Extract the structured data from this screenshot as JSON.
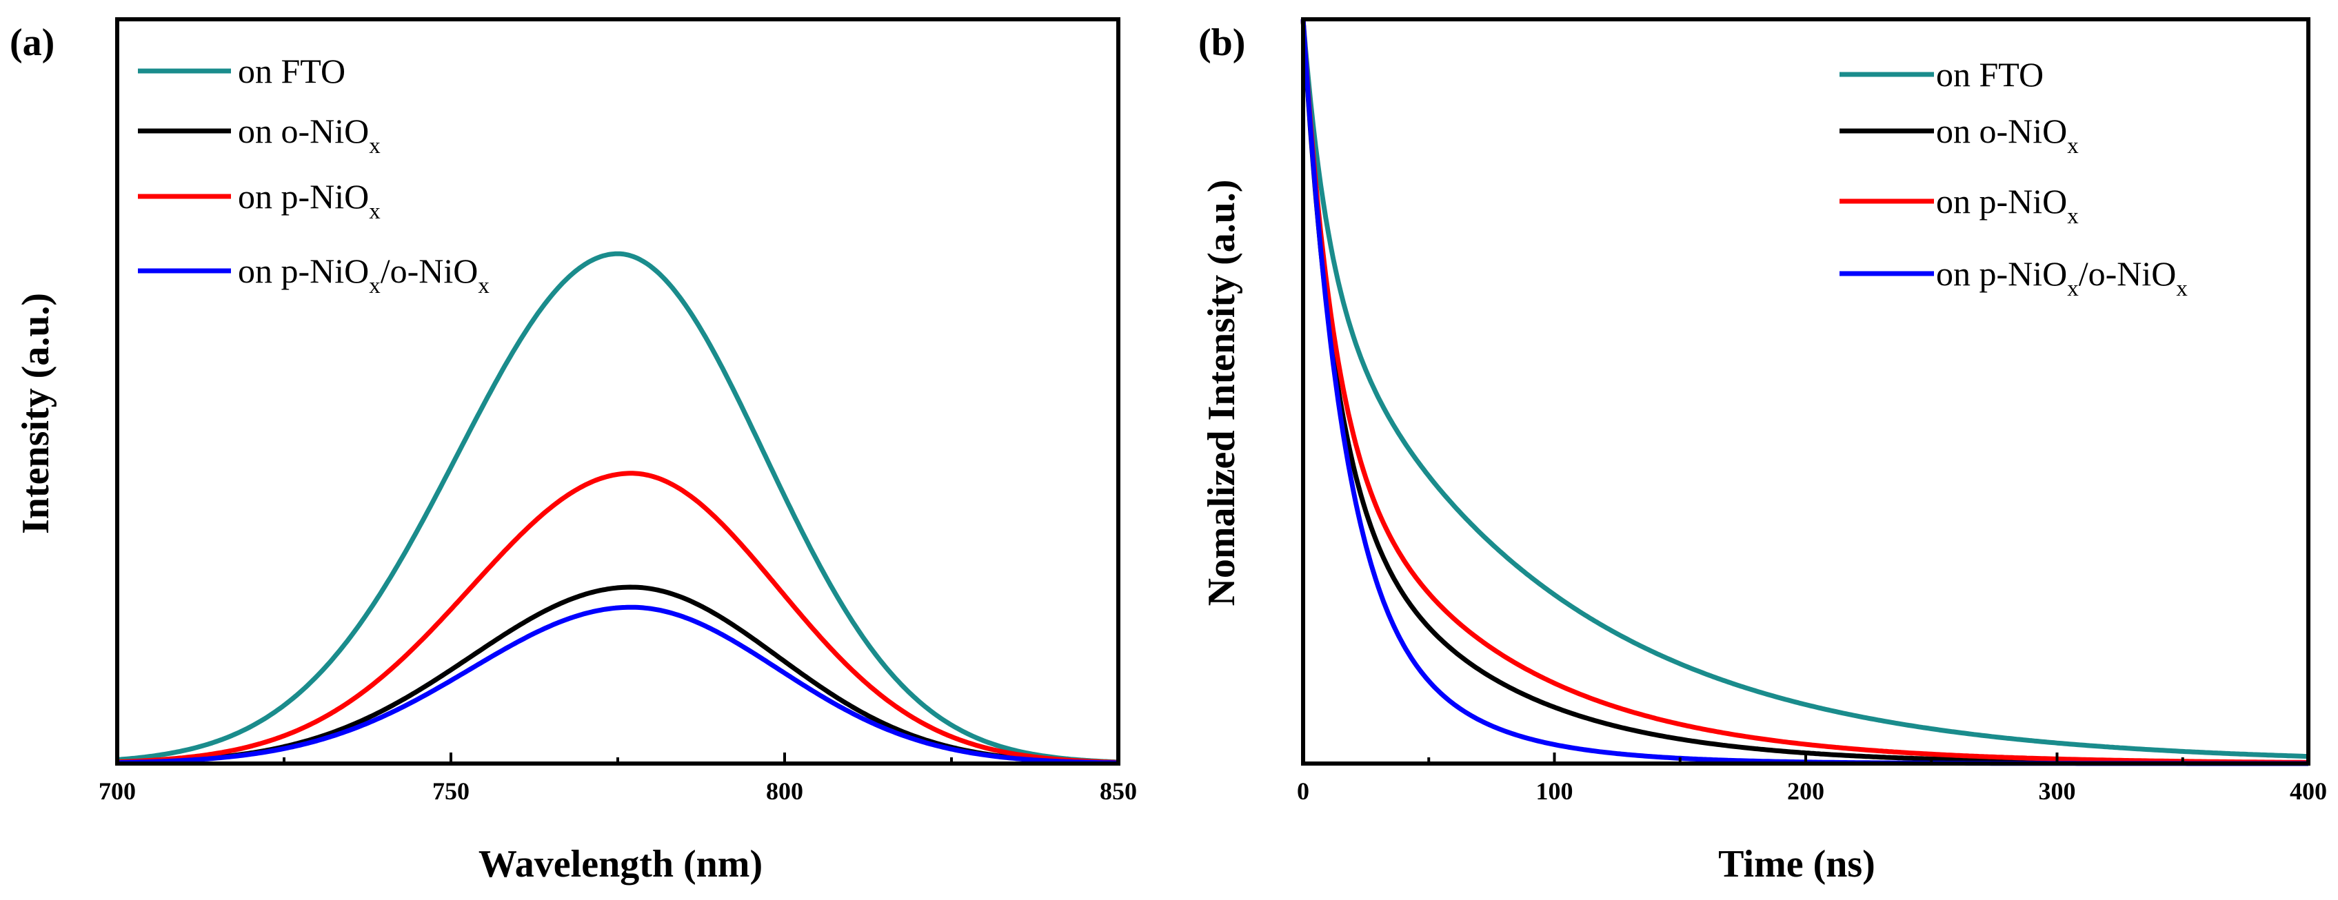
{
  "chart_data": [
    {
      "type": "line",
      "panel_label": "(a)",
      "xlabel": "Wavelength (nm)",
      "ylabel": "Intensity (a.u.)",
      "xlim": [
        700,
        850
      ],
      "ylim": [
        0,
        1.0
      ],
      "xticks": [
        "700",
        "750",
        "800",
        "850"
      ],
      "show_y_ticklabels": false,
      "legend": "top-left",
      "series": [
        {
          "name": "on FTO",
          "color": "#1a8c8c",
          "peak_x": 775,
          "peak_y": 0.685,
          "sigma_left": 24,
          "sigma_right": 22
        },
        {
          "name": "on o-NiOx",
          "color": "#000000",
          "peak_x": 777,
          "peak_y": 0.237,
          "sigma_left": 24,
          "sigma_right": 22
        },
        {
          "name": "on p-NiOx",
          "color": "#ff0000",
          "peak_x": 777,
          "peak_y": 0.39,
          "sigma_left": 24,
          "sigma_right": 22
        },
        {
          "name": "on p-NiOx/o-NiOx",
          "color": "#0000ff",
          "peak_x": 777,
          "peak_y": 0.21,
          "sigma_left": 24,
          "sigma_right": 22
        }
      ]
    },
    {
      "type": "line",
      "panel_label": "(b)",
      "xlabel": "Time (ns)",
      "ylabel": "Nomalized Intensity (a.u.)",
      "xlim": [
        0,
        400
      ],
      "ylim": [
        0,
        1.0
      ],
      "xticks": [
        "0",
        "100",
        "200",
        "300",
        "400"
      ],
      "show_y_ticklabels": false,
      "legend": "top-right",
      "series": [
        {
          "name": "on FTO",
          "color": "#1a8c8c",
          "a1": 0.35,
          "tau1": 10,
          "a2": 0.65,
          "tau2": 95
        },
        {
          "name": "on o-NiOx",
          "color": "#000000",
          "a1": 0.6,
          "tau1": 12,
          "a2": 0.4,
          "tau2": 60
        },
        {
          "name": "on p-NiOx",
          "color": "#ff0000",
          "a1": 0.55,
          "tau1": 12,
          "a2": 0.45,
          "tau2": 70
        },
        {
          "name": "on p-NiOx/o-NiOx",
          "color": "#0000ff",
          "a1": 0.7,
          "tau1": 15,
          "a2": 0.3,
          "tau2": 40
        }
      ]
    }
  ],
  "legend_labels": {
    "fto": "on FTO",
    "o_prefix": "on o-NiO",
    "p_prefix": "on p-NiO",
    "po_prefix": "on p-NiO",
    "po_mid": "/o-NiO",
    "sub": "x"
  }
}
